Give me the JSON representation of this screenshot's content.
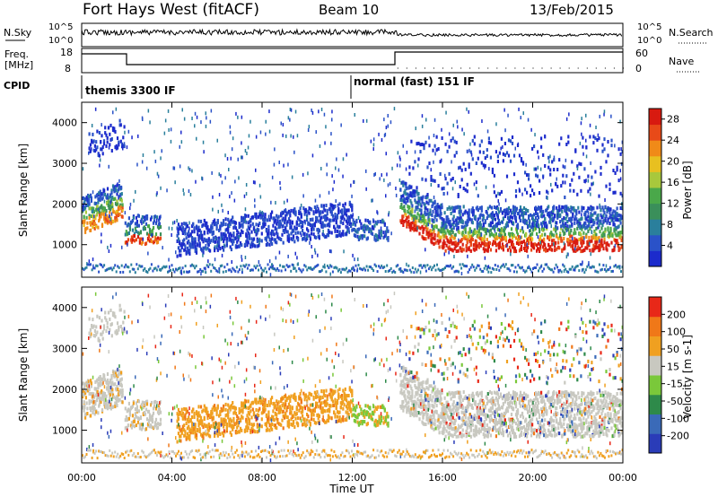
{
  "header": {
    "station": "Fort Hays West (fitACF)",
    "beam": "Beam 10",
    "date": "13/Feb/2015"
  },
  "noise_panel": {
    "left_label": "N.Sky",
    "left_ticks": [
      "10^5",
      "10^0"
    ],
    "right_label": "N.Search",
    "right_ticks": [
      "10^5",
      "10^0"
    ]
  },
  "freq_panel": {
    "left_label_1": "Freq.",
    "left_label_2": "[MHz]",
    "left_ticks": [
      "18",
      "8"
    ],
    "right_label": "Nave",
    "right_ticks": [
      "60",
      "0"
    ]
  },
  "cpid": {
    "label": "CPID",
    "mode1": "themis 3300 IF",
    "mode2": "normal (fast) 151 IF"
  },
  "time_axis": {
    "title": "Time UT",
    "ticks": [
      "00:00",
      "04:00",
      "08:00",
      "12:00",
      "16:00",
      "20:00",
      "00:00"
    ]
  },
  "chart_data": [
    {
      "type": "heatmap",
      "name": "power",
      "ylabel": "Slant Range [km]",
      "yticks": [
        "1000",
        "2000",
        "3000",
        "4000"
      ],
      "ylim": [
        200,
        4500
      ],
      "xlim_hours": [
        0,
        24
      ],
      "colorbar": {
        "label": "Power [dB]",
        "ticks": [
          "4",
          "8",
          "12",
          "16",
          "20",
          "24",
          "28"
        ],
        "range": [
          0,
          30
        ],
        "colors": [
          "#1c2bcc",
          "#2a52c8",
          "#2a7f9c",
          "#3a8f5a",
          "#4aa84a",
          "#a8c83c",
          "#e8c020",
          "#f08a18",
          "#e84a18",
          "#d81a10"
        ]
      }
    },
    {
      "type": "heatmap",
      "name": "velocity",
      "ylabel": "Slant Range [km]",
      "yticks": [
        "1000",
        "2000",
        "3000",
        "4000"
      ],
      "ylim": [
        200,
        4500
      ],
      "xlim_hours": [
        0,
        24
      ],
      "colorbar": {
        "label": "Velocity [m s-1]",
        "ticks": [
          "200",
          "100",
          "50",
          "15",
          "-15",
          "-50",
          "-100",
          "-200"
        ],
        "colors": [
          "#2a3cb8",
          "#3a6ab8",
          "#2e8a4a",
          "#7ac83a",
          "#c8c8c0",
          "#f0a020",
          "#f07818",
          "#e82818"
        ]
      }
    }
  ]
}
